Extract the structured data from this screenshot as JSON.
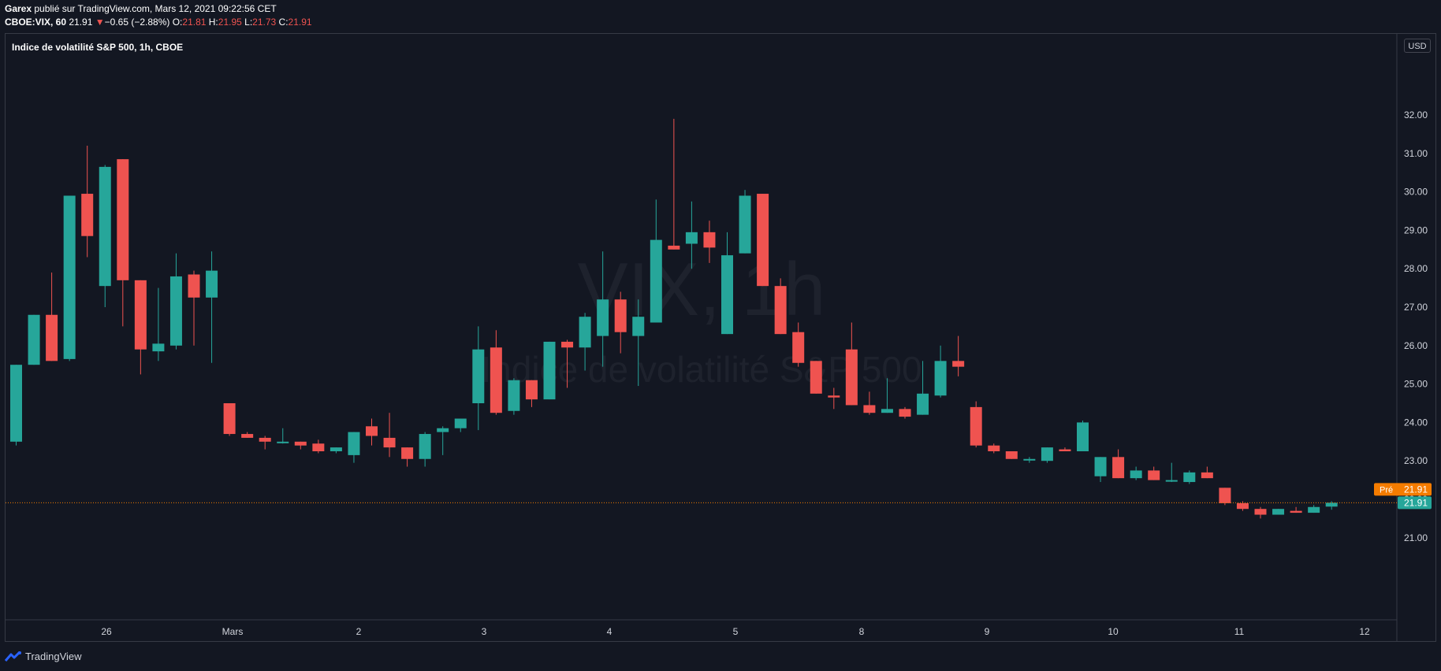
{
  "header": {
    "author": "Garex",
    "published_text": " publié sur TradingView.com, Mars 12, 2021 09:22:56 CET"
  },
  "ohlc": {
    "symbol": "CBOE:VIX, 60",
    "last": "21.91",
    "change": "−0.65 (−2.88%)",
    "o_label": "O:",
    "o_value": "21.81",
    "h_label": "H:",
    "h_value": "21.95",
    "l_label": "L:",
    "l_value": "21.73",
    "c_label": "C:",
    "c_value": "21.91"
  },
  "chart_title": "Indice de volatilité S&P 500, 1h, CBOE",
  "currency": "USD",
  "watermark": {
    "line1": "VIX, 1h",
    "line2": "Indice de volatilité S&P 500"
  },
  "price_labels": {
    "pre_label": "Pré",
    "pre_value": "21.91",
    "last_value": "21.91"
  },
  "brand": "TradingView",
  "colors": {
    "up": "#26a69a",
    "down": "#ef5350",
    "background": "#131722",
    "pre_badge": "#f57c00"
  },
  "chart_data": {
    "type": "candlestick",
    "title": "Indice de volatilité S&P 500, 1h, CBOE",
    "y_ticks": [
      "21.00",
      "22.00",
      "23.00",
      "24.00",
      "25.00",
      "26.00",
      "27.00",
      "28.00",
      "29.00",
      "30.00",
      "31.00",
      "32.00"
    ],
    "ylim": [
      20,
      32.8
    ],
    "x_ticks": [
      "26",
      "Mars",
      "2",
      "3",
      "4",
      "5",
      "8",
      "9",
      "10",
      "11",
      "12"
    ],
    "last_price": 21.91,
    "candles": [
      {
        "o": 23.5,
        "h": 25.5,
        "l": 23.4,
        "c": 25.5
      },
      {
        "o": 25.5,
        "h": 26.8,
        "l": 25.5,
        "c": 26.8
      },
      {
        "o": 26.8,
        "h": 27.9,
        "l": 25.6,
        "c": 25.6
      },
      {
        "o": 25.65,
        "h": 29.9,
        "l": 25.6,
        "c": 29.9
      },
      {
        "o": 29.95,
        "h": 31.2,
        "l": 28.3,
        "c": 28.85
      },
      {
        "o": 27.55,
        "h": 30.7,
        "l": 27.0,
        "c": 30.65
      },
      {
        "o": 30.85,
        "h": 30.85,
        "l": 26.5,
        "c": 27.7
      },
      {
        "o": 27.7,
        "h": 27.7,
        "l": 25.25,
        "c": 25.9
      },
      {
        "o": 25.85,
        "h": 27.5,
        "l": 25.6,
        "c": 26.05
      },
      {
        "o": 26.0,
        "h": 28.4,
        "l": 25.9,
        "c": 27.8
      },
      {
        "o": 27.85,
        "h": 27.95,
        "l": 26.0,
        "c": 27.25
      },
      {
        "o": 27.25,
        "h": 28.45,
        "l": 25.55,
        "c": 27.95
      },
      {
        "o": 24.5,
        "h": 24.5,
        "l": 23.65,
        "c": 23.7
      },
      {
        "o": 23.7,
        "h": 23.75,
        "l": 23.6,
        "c": 23.6
      },
      {
        "o": 23.6,
        "h": 23.65,
        "l": 23.3,
        "c": 23.5
      },
      {
        "o": 23.5,
        "h": 23.85,
        "l": 23.45,
        "c": 23.5
      },
      {
        "o": 23.5,
        "h": 23.5,
        "l": 23.3,
        "c": 23.4
      },
      {
        "o": 23.45,
        "h": 23.55,
        "l": 23.2,
        "c": 23.25
      },
      {
        "o": 23.25,
        "h": 23.35,
        "l": 23.2,
        "c": 23.35
      },
      {
        "o": 23.15,
        "h": 23.75,
        "l": 22.95,
        "c": 23.75
      },
      {
        "o": 23.9,
        "h": 24.1,
        "l": 23.4,
        "c": 23.65
      },
      {
        "o": 23.6,
        "h": 24.25,
        "l": 23.1,
        "c": 23.35
      },
      {
        "o": 23.35,
        "h": 23.35,
        "l": 22.85,
        "c": 23.05
      },
      {
        "o": 23.05,
        "h": 23.75,
        "l": 22.85,
        "c": 23.7
      },
      {
        "o": 23.75,
        "h": 23.9,
        "l": 23.15,
        "c": 23.85
      },
      {
        "o": 23.85,
        "h": 24.1,
        "l": 23.75,
        "c": 24.1
      },
      {
        "o": 24.5,
        "h": 26.5,
        "l": 23.8,
        "c": 25.9
      },
      {
        "o": 25.95,
        "h": 26.4,
        "l": 24.2,
        "c": 24.25
      },
      {
        "o": 24.3,
        "h": 25.15,
        "l": 24.2,
        "c": 25.1
      },
      {
        "o": 25.1,
        "h": 25.1,
        "l": 24.4,
        "c": 24.6
      },
      {
        "o": 24.6,
        "h": 26.1,
        "l": 24.6,
        "c": 26.1
      },
      {
        "o": 26.1,
        "h": 26.15,
        "l": 24.9,
        "c": 25.95
      },
      {
        "o": 25.95,
        "h": 26.85,
        "l": 25.35,
        "c": 26.75
      },
      {
        "o": 26.25,
        "h": 28.45,
        "l": 25.45,
        "c": 27.2
      },
      {
        "o": 27.2,
        "h": 27.4,
        "l": 25.8,
        "c": 26.35
      },
      {
        "o": 26.25,
        "h": 27.2,
        "l": 24.95,
        "c": 26.75
      },
      {
        "o": 26.6,
        "h": 29.8,
        "l": 26.6,
        "c": 28.75
      },
      {
        "o": 28.6,
        "h": 31.9,
        "l": 28.5,
        "c": 28.5
      },
      {
        "o": 28.65,
        "h": 29.75,
        "l": 28.0,
        "c": 28.95
      },
      {
        "o": 28.95,
        "h": 29.25,
        "l": 28.15,
        "c": 28.55
      },
      {
        "o": 26.3,
        "h": 28.95,
        "l": 26.3,
        "c": 28.35
      },
      {
        "o": 28.4,
        "h": 30.05,
        "l": 28.4,
        "c": 29.9
      },
      {
        "o": 29.95,
        "h": 29.95,
        "l": 27.55,
        "c": 27.55
      },
      {
        "o": 27.55,
        "h": 27.75,
        "l": 26.3,
        "c": 26.3
      },
      {
        "o": 26.35,
        "h": 26.6,
        "l": 25.45,
        "c": 25.55
      },
      {
        "o": 25.6,
        "h": 25.6,
        "l": 24.75,
        "c": 24.75
      },
      {
        "o": 24.7,
        "h": 24.9,
        "l": 24.35,
        "c": 24.65
      },
      {
        "o": 25.9,
        "h": 26.6,
        "l": 24.45,
        "c": 24.45
      },
      {
        "o": 24.45,
        "h": 24.8,
        "l": 24.2,
        "c": 24.25
      },
      {
        "o": 24.25,
        "h": 25.15,
        "l": 24.25,
        "c": 24.35
      },
      {
        "o": 24.35,
        "h": 24.4,
        "l": 24.1,
        "c": 24.15
      },
      {
        "o": 24.2,
        "h": 25.6,
        "l": 24.2,
        "c": 24.75
      },
      {
        "o": 24.7,
        "h": 26.0,
        "l": 24.65,
        "c": 25.6
      },
      {
        "o": 25.6,
        "h": 26.25,
        "l": 25.2,
        "c": 25.45
      },
      {
        "o": 24.4,
        "h": 24.55,
        "l": 23.35,
        "c": 23.4
      },
      {
        "o": 23.4,
        "h": 23.45,
        "l": 23.2,
        "c": 23.25
      },
      {
        "o": 23.25,
        "h": 23.25,
        "l": 23.05,
        "c": 23.05
      },
      {
        "o": 23.05,
        "h": 23.1,
        "l": 22.95,
        "c": 23.05
      },
      {
        "o": 23.0,
        "h": 23.35,
        "l": 22.95,
        "c": 23.35
      },
      {
        "o": 23.3,
        "h": 23.35,
        "l": 23.25,
        "c": 23.25
      },
      {
        "o": 23.25,
        "h": 24.05,
        "l": 23.25,
        "c": 24.0
      },
      {
        "o": 22.6,
        "h": 23.1,
        "l": 22.45,
        "c": 23.1
      },
      {
        "o": 23.1,
        "h": 23.3,
        "l": 22.55,
        "c": 22.55
      },
      {
        "o": 22.55,
        "h": 22.85,
        "l": 22.5,
        "c": 22.75
      },
      {
        "o": 22.75,
        "h": 22.85,
        "l": 22.5,
        "c": 22.5
      },
      {
        "o": 22.5,
        "h": 22.95,
        "l": 22.45,
        "c": 22.5
      },
      {
        "o": 22.45,
        "h": 22.75,
        "l": 22.4,
        "c": 22.7
      },
      {
        "o": 22.7,
        "h": 22.85,
        "l": 22.55,
        "c": 22.55
      },
      {
        "o": 22.3,
        "h": 22.3,
        "l": 21.85,
        "c": 21.9
      },
      {
        "o": 21.9,
        "h": 21.95,
        "l": 21.7,
        "c": 21.75
      },
      {
        "o": 21.75,
        "h": 21.8,
        "l": 21.5,
        "c": 21.6
      },
      {
        "o": 21.6,
        "h": 21.75,
        "l": 21.6,
        "c": 21.75
      },
      {
        "o": 21.7,
        "h": 21.8,
        "l": 21.65,
        "c": 21.65
      },
      {
        "o": 21.65,
        "h": 21.85,
        "l": 21.65,
        "c": 21.8
      },
      {
        "o": 21.81,
        "h": 21.95,
        "l": 21.73,
        "c": 21.91
      }
    ]
  }
}
